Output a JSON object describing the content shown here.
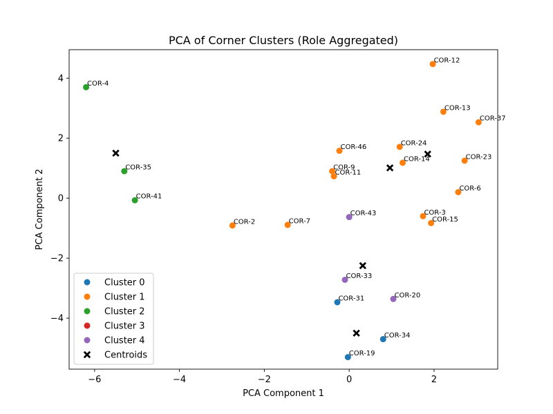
{
  "chart_data": {
    "type": "scatter",
    "title": "PCA of Corner Clusters (Role Aggregated)",
    "xlabel": "PCA Component 1",
    "ylabel": "PCA Component 2",
    "xlim": [
      -6.6,
      3.5
    ],
    "ylim": [
      -5.7,
      4.95
    ],
    "xticks": [
      -6,
      -4,
      -2,
      0,
      2
    ],
    "yticks": [
      -4,
      -2,
      0,
      2,
      4
    ],
    "xtick_labels": [
      "−6",
      "−4",
      "−2",
      "0",
      "2"
    ],
    "ytick_labels": [
      "−4",
      "−2",
      "0",
      "2",
      "4"
    ],
    "legend_position": "lower-left",
    "series": [
      {
        "name": "Cluster 0",
        "color": "#1f77b4",
        "points": [
          {
            "label": "COR-31",
            "x": -0.28,
            "y": -3.47
          },
          {
            "label": "COR-34",
            "x": 0.8,
            "y": -4.7
          },
          {
            "label": "COR-19",
            "x": -0.03,
            "y": -5.3
          }
        ]
      },
      {
        "name": "Cluster 1",
        "color": "#ff7f0e",
        "points": [
          {
            "label": "COR-12",
            "x": 1.97,
            "y": 4.47
          },
          {
            "label": "COR-13",
            "x": 2.22,
            "y": 2.88
          },
          {
            "label": "COR-37",
            "x": 3.05,
            "y": 2.53
          },
          {
            "label": "COR-24",
            "x": 1.19,
            "y": 1.71
          },
          {
            "label": "COR-46",
            "x": -0.23,
            "y": 1.58
          },
          {
            "label": "COR-14",
            "x": 1.26,
            "y": 1.18
          },
          {
            "label": "COR-23",
            "x": 2.72,
            "y": 1.25
          },
          {
            "label": "COR-9",
            "x": -0.4,
            "y": 0.9
          },
          {
            "label": "COR-11",
            "x": -0.36,
            "y": 0.73
          },
          {
            "label": "COR-6",
            "x": 2.57,
            "y": 0.2
          },
          {
            "label": "COR-2",
            "x": -2.75,
            "y": -0.91
          },
          {
            "label": "COR-7",
            "x": -1.45,
            "y": -0.89
          },
          {
            "label": "COR-3",
            "x": 1.74,
            "y": -0.6
          },
          {
            "label": "COR-15",
            "x": 1.93,
            "y": -0.83
          }
        ]
      },
      {
        "name": "Cluster 2",
        "color": "#2ca02c",
        "points": [
          {
            "label": "COR-4",
            "x": -6.2,
            "y": 3.7
          },
          {
            "label": "COR-35",
            "x": -5.3,
            "y": 0.9
          },
          {
            "label": "COR-41",
            "x": -5.05,
            "y": -0.07
          }
        ]
      },
      {
        "name": "Cluster 3",
        "color": "#d62728",
        "points": []
      },
      {
        "name": "Cluster 4",
        "color": "#9467bd",
        "points": [
          {
            "label": "COR-43",
            "x": 0.0,
            "y": -0.63
          },
          {
            "label": "COR-33",
            "x": -0.1,
            "y": -2.72
          },
          {
            "label": "COR-20",
            "x": 1.04,
            "y": -3.36
          }
        ]
      }
    ],
    "centroids": {
      "name": "Centroids",
      "color": "#000000",
      "points": [
        {
          "x": -5.5,
          "y": 1.5
        },
        {
          "x": 0.96,
          "y": 1.01
        },
        {
          "x": 1.85,
          "y": 1.47
        },
        {
          "x": 0.32,
          "y": -2.25
        },
        {
          "x": 0.17,
          "y": -4.5
        }
      ]
    }
  }
}
